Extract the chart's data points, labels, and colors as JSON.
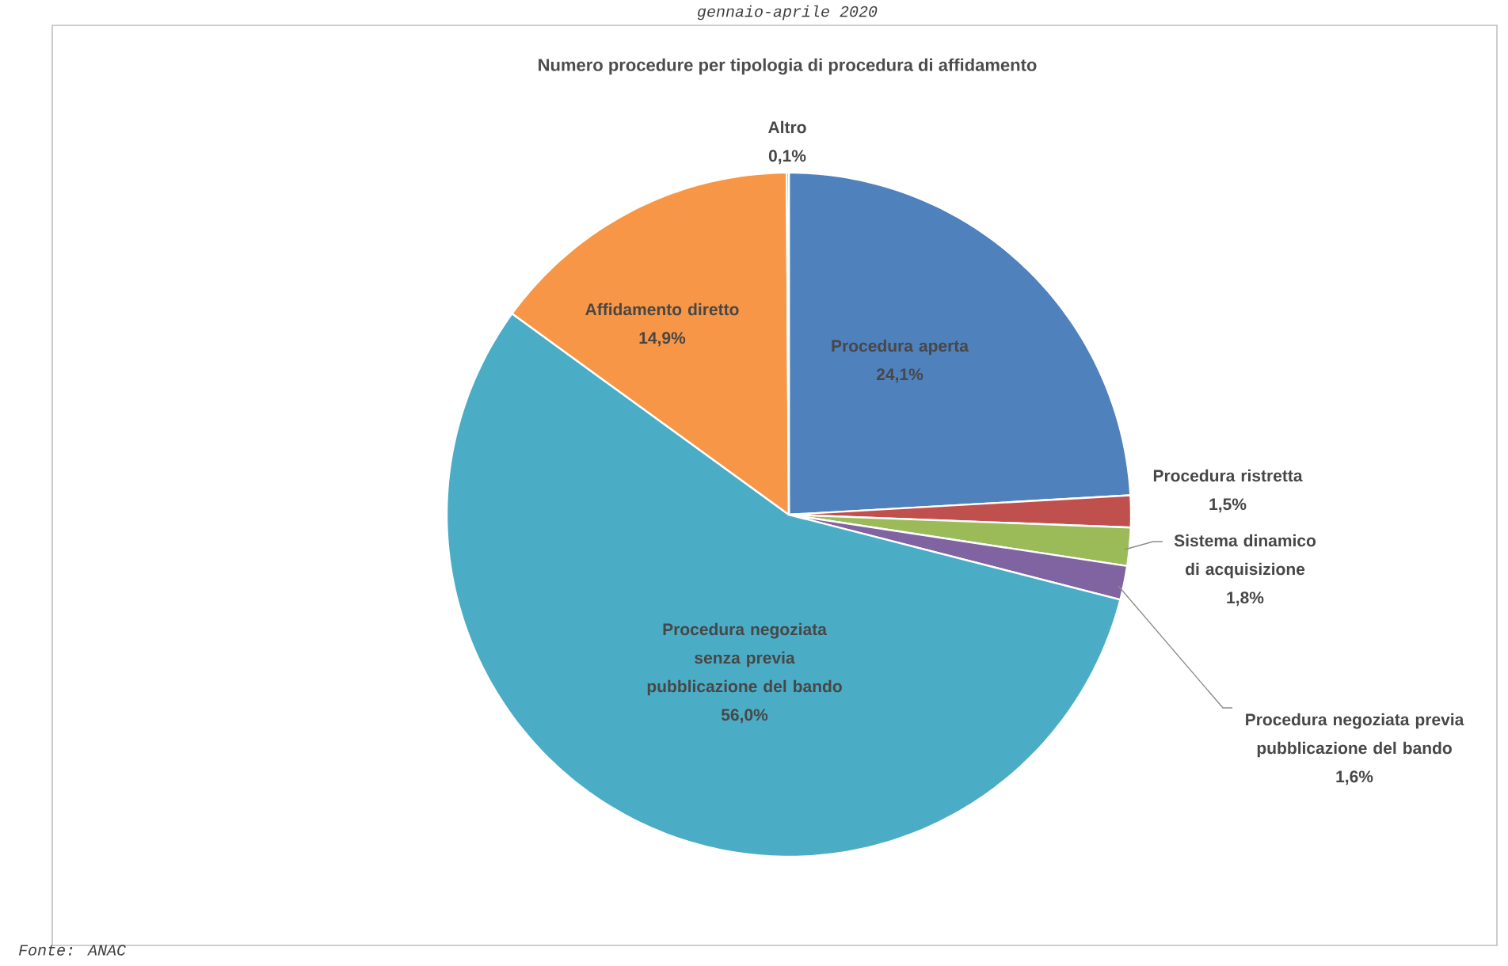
{
  "chart_data": {
    "type": "pie",
    "title": "Numero procedure per tipologia di procedura di affidamento",
    "subtitle": "gennaio-aprile 2020",
    "annotations": [
      "Fonte: ANAC"
    ],
    "categories": [
      "Procedura aperta",
      "Procedura ristretta",
      "Sistema dinamico di acquisizione",
      "Procedura negoziata previa pubblicazione del bando",
      "Procedura negoziata senza previa pubblicazione del bando",
      "Affidamento diretto",
      "Altro"
    ],
    "values": [
      24.1,
      1.5,
      1.8,
      1.6,
      56.0,
      14.9,
      0.1
    ],
    "value_labels": [
      "24,1%",
      "1,5%",
      "1,8%",
      "1,6%",
      "56,0%",
      "14,9%",
      "0,1%"
    ],
    "colors": [
      "#4f81bd",
      "#c0504d",
      "#9bbb59",
      "#8064a2",
      "#4bacc6",
      "#f79646",
      "#2c4d75"
    ]
  }
}
